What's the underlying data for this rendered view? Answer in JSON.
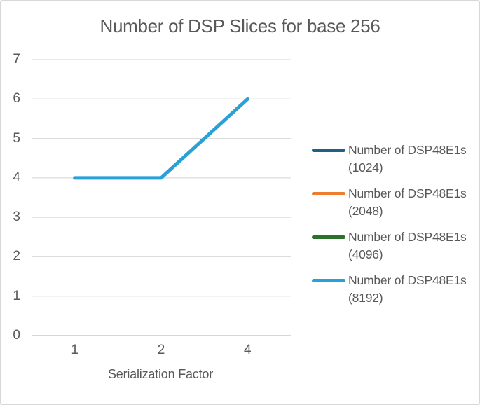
{
  "chart_data": {
    "type": "line",
    "title": "Number of DSP Slices for base 256",
    "xlabel": "Serialization Factor",
    "ylabel": "",
    "categories": [
      "1",
      "2",
      "4"
    ],
    "ylim": [
      0,
      7
    ],
    "yticks": [
      0,
      1,
      2,
      3,
      4,
      5,
      6,
      7
    ],
    "grid": true,
    "legend_position": "right",
    "note": "Only the (8192) series line is visible in the plot area; the other three series have legend entries but no visible line.",
    "series": [
      {
        "key": "1024",
        "name": "Number of DSP48E1s (1024)",
        "label_lines": [
          "Number of DSP48E1s",
          "(1024)"
        ],
        "color": "#206083",
        "line_visible": false,
        "values": null
      },
      {
        "key": "2048",
        "name": "Number of DSP48E1s (2048)",
        "label_lines": [
          "Number of DSP48E1s",
          "(2048)"
        ],
        "color": "#ED7D31",
        "line_visible": false,
        "values": null
      },
      {
        "key": "4096",
        "name": "Number of DSP48E1s (4096)",
        "label_lines": [
          "Number of DSP48E1s",
          "(4096)"
        ],
        "color": "#2C722B",
        "line_visible": false,
        "values": null
      },
      {
        "key": "8192",
        "name": "Number of DSP48E1s (8192)",
        "label_lines": [
          "Number of DSP48E1s",
          "(8192)"
        ],
        "color": "#29A0D6",
        "line_visible": true,
        "values": [
          4,
          4,
          6
        ]
      }
    ],
    "colors": {
      "grid": "#DCDCDC",
      "axis": "#C9C9C9",
      "text": "#595959",
      "frame_border": "#D8D8D8",
      "background": "#FFFFFF"
    }
  }
}
